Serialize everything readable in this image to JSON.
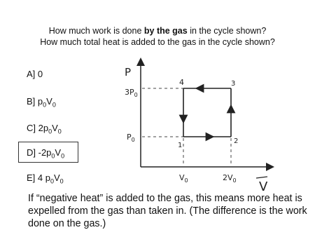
{
  "question": [
    "How much work is done ",
    "by the gas",
    " in the cycle shown?"
  ],
  "question2": "How much total heat is added to the gas in the cycle shown?",
  "options": [
    [
      "A] 0"
    ],
    [
      "B] p",
      "0",
      "V",
      "0"
    ],
    [
      "C] 2p",
      "0",
      "V",
      "0"
    ],
    [
      "D] -2p",
      "0",
      "V",
      "0"
    ],
    [
      "E] 4 p",
      "0",
      "V",
      "0"
    ]
  ],
  "note": "If “negative heat” is added to the gas, this means more heat is expelled from the gas than taken in. (The difference is the work done on the gas.)",
  "diagram": {
    "y_axis": "P",
    "x_axis": "V",
    "y_labels": [
      [
        "3P",
        "0"
      ],
      [
        "P",
        "0"
      ]
    ],
    "x_labels": [
      [
        "V",
        "0"
      ],
      [
        "2V",
        "0"
      ]
    ],
    "points": [
      "1",
      "2",
      "3",
      "4"
    ]
  }
}
